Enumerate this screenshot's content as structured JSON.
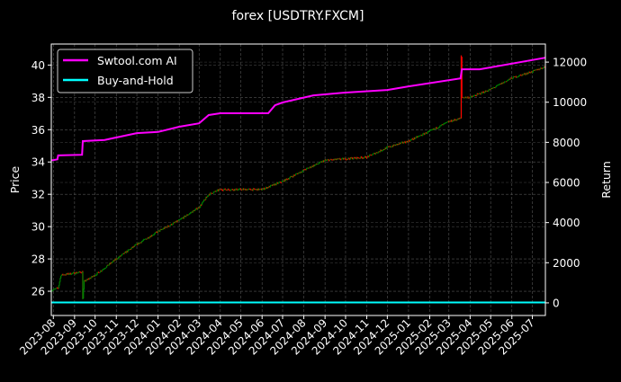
{
  "chart_data": {
    "type": "line",
    "title": "forex [USDTRY.FXCM]",
    "ylabel": "Price",
    "ylabel_right": "Return",
    "xlim": [
      "2023-07-29",
      "2025-07-20"
    ],
    "ylim": [
      24.5,
      41.3
    ],
    "ylim_right": [
      -630,
      12900
    ],
    "y_ticks": [
      26,
      28,
      30,
      32,
      34,
      36,
      38,
      40
    ],
    "y_ticks_right": [
      0,
      2000,
      4000,
      6000,
      8000,
      10000,
      12000
    ],
    "x_ticks": [
      "2023-08",
      "2023-09",
      "2023-10",
      "2023-11",
      "2023-12",
      "2024-01",
      "2024-02",
      "2024-03",
      "2024-04",
      "2024-05",
      "2024-06",
      "2024-07",
      "2024-08",
      "2024-09",
      "2024-10",
      "2024-11",
      "2024-12",
      "2025-01",
      "2025-02",
      "2025-03",
      "2025-04",
      "2025-05",
      "2025-06",
      "2025-07"
    ],
    "grid": true,
    "legend_position": "top-left",
    "price_candles": {
      "axis": "left",
      "up_color": "#008000",
      "down_color": "#ff0000",
      "points": [
        [
          "2023-07-29",
          26.05
        ],
        [
          "2023-08-08",
          26.2
        ],
        [
          "2023-08-12",
          27.0
        ],
        [
          "2023-09-12",
          27.2
        ],
        [
          "2023-09-13",
          25.6
        ],
        [
          "2023-09-15",
          26.6
        ],
        [
          "2023-10-01",
          27.0
        ],
        [
          "2023-11-01",
          28.0
        ],
        [
          "2023-12-01",
          28.9
        ],
        [
          "2024-01-01",
          29.7
        ],
        [
          "2024-02-01",
          30.4
        ],
        [
          "2024-03-01",
          31.2
        ],
        [
          "2024-03-15",
          32.0
        ],
        [
          "2024-04-01",
          32.3
        ],
        [
          "2024-05-01",
          32.3
        ],
        [
          "2024-06-01",
          32.3
        ],
        [
          "2024-07-01",
          32.8
        ],
        [
          "2024-08-01",
          33.5
        ],
        [
          "2024-09-01",
          34.1
        ],
        [
          "2024-10-01",
          34.2
        ],
        [
          "2024-11-01",
          34.3
        ],
        [
          "2024-12-01",
          34.9
        ],
        [
          "2025-01-01",
          35.3
        ],
        [
          "2025-02-01",
          35.9
        ],
        [
          "2025-03-01",
          36.5
        ],
        [
          "2025-03-18",
          36.7
        ],
        [
          "2025-03-19",
          40.5
        ],
        [
          "2025-03-20",
          38.0
        ],
        [
          "2025-04-01",
          38.0
        ],
        [
          "2025-05-01",
          38.5
        ],
        [
          "2025-06-01",
          39.2
        ],
        [
          "2025-07-01",
          39.6
        ],
        [
          "2025-07-20",
          39.9
        ]
      ]
    },
    "series": [
      {
        "name": "Swtool.com AI",
        "color": "#ff00ff",
        "axis": "right",
        "points": [
          [
            "2023-07-29",
            7100
          ],
          [
            "2023-08-07",
            7150
          ],
          [
            "2023-08-08",
            7350
          ],
          [
            "2023-09-12",
            7380
          ],
          [
            "2023-09-13",
            8060
          ],
          [
            "2023-10-15",
            8120
          ],
          [
            "2023-12-01",
            8460
          ],
          [
            "2024-01-01",
            8520
          ],
          [
            "2024-02-01",
            8780
          ],
          [
            "2024-03-01",
            8950
          ],
          [
            "2024-03-15",
            9360
          ],
          [
            "2024-04-01",
            9450
          ],
          [
            "2024-06-10",
            9450
          ],
          [
            "2024-06-20",
            9850
          ],
          [
            "2024-07-01",
            9990
          ],
          [
            "2024-08-15",
            10340
          ],
          [
            "2024-10-01",
            10480
          ],
          [
            "2024-12-01",
            10610
          ],
          [
            "2025-01-01",
            10790
          ],
          [
            "2025-03-18",
            11190
          ],
          [
            "2025-03-20",
            11640
          ],
          [
            "2025-04-15",
            11640
          ],
          [
            "2025-07-20",
            12220
          ]
        ]
      },
      {
        "name": "Buy-and-Hold",
        "color": "#00ffff",
        "axis": "right",
        "points": [
          [
            "2023-07-29",
            20
          ],
          [
            "2025-07-20",
            20
          ]
        ]
      }
    ]
  }
}
